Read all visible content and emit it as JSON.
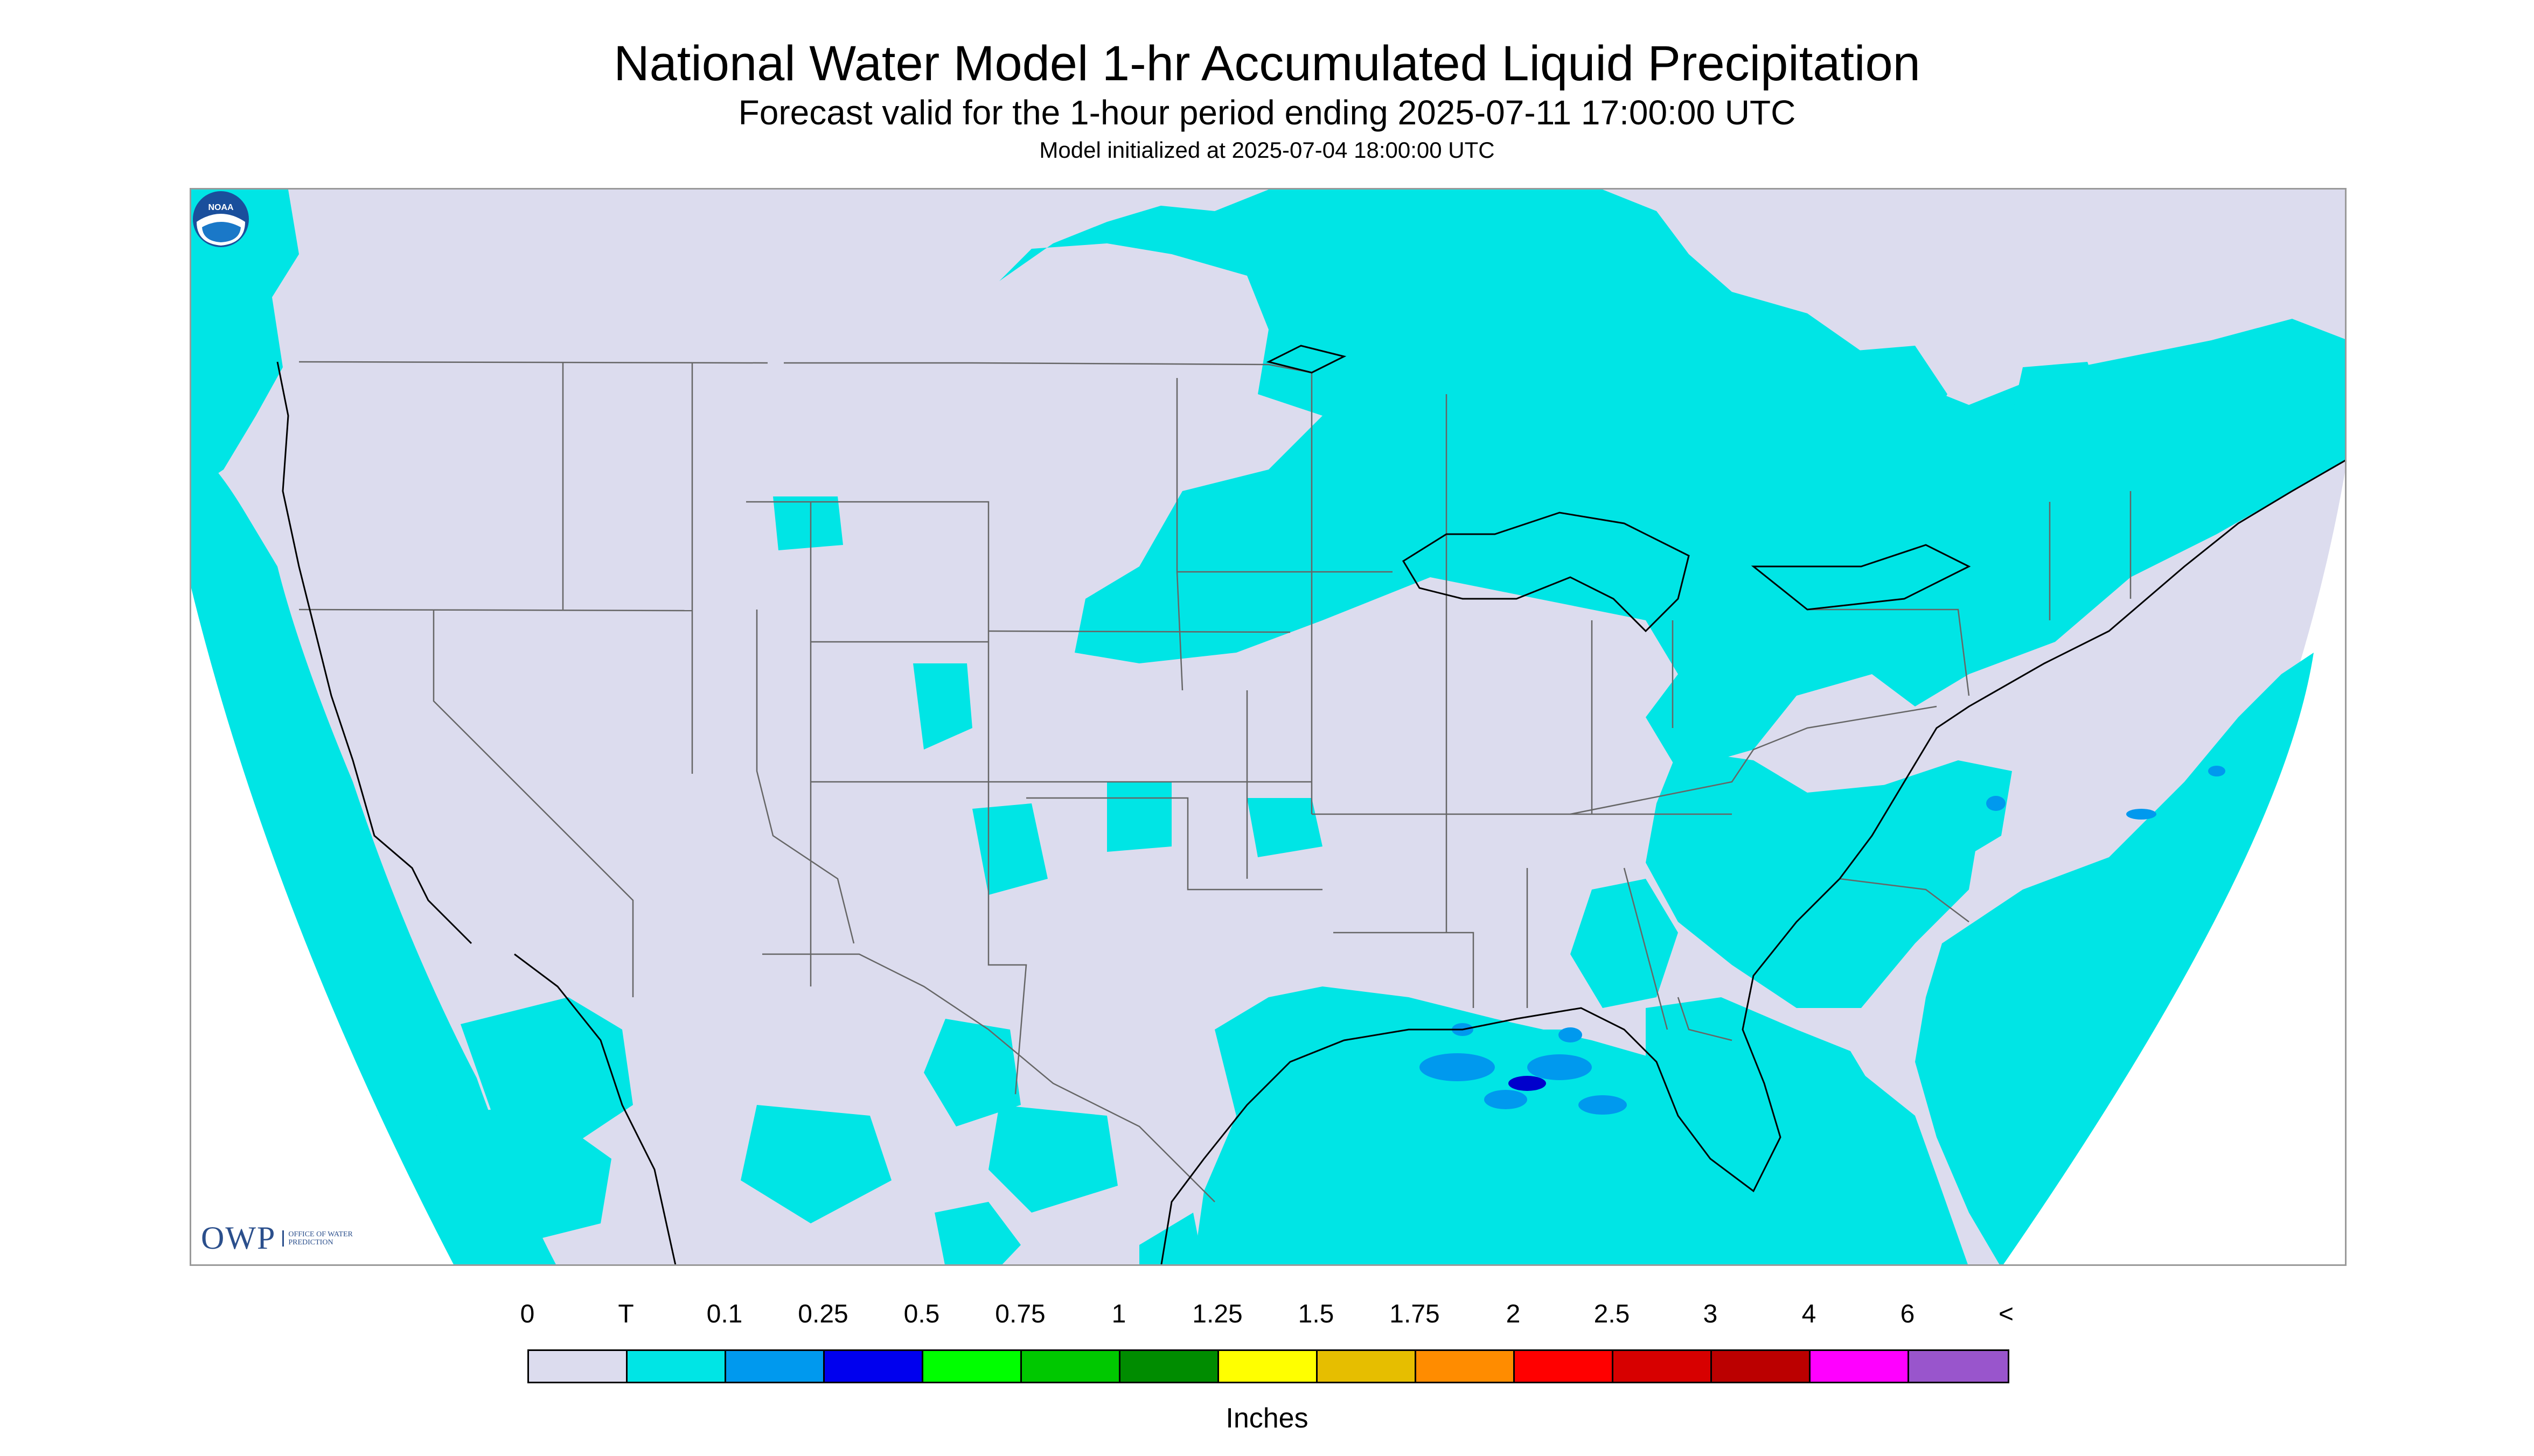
{
  "header": {
    "title": "National Water Model 1-hr Accumulated Liquid Precipitation",
    "subtitle": "Forecast valid for the 1-hour period ending 2025-07-11 17:00:00 UTC",
    "init_line": "Model initialized at 2025-07-04 18:00:00 UTC"
  },
  "logos": {
    "owp_text": "OWP",
    "owp_sub": "OFFICE OF WATER PREDICTION",
    "noaa_text": "NOAA"
  },
  "legend": {
    "labels": [
      "0",
      "T",
      "0.1",
      "0.25",
      "0.5",
      "0.75",
      "1",
      "1.25",
      "1.5",
      "1.75",
      "2",
      "2.5",
      "3",
      "4",
      "6",
      "<"
    ],
    "colors": [
      "#dcdcee",
      "#00e5e5",
      "#0099ee",
      "#0000ee",
      "#00ff00",
      "#00c800",
      "#008c00",
      "#ffff00",
      "#e6be00",
      "#ff8c00",
      "#ff0000",
      "#d70000",
      "#bb0000",
      "#ff00ff",
      "#9955cc"
    ],
    "units": "Inches"
  },
  "colors": {
    "land_no_precip": "#dcdcee",
    "trace": "#00e5e5",
    "light": "#0099ee",
    "moderate": "#0000ee"
  }
}
